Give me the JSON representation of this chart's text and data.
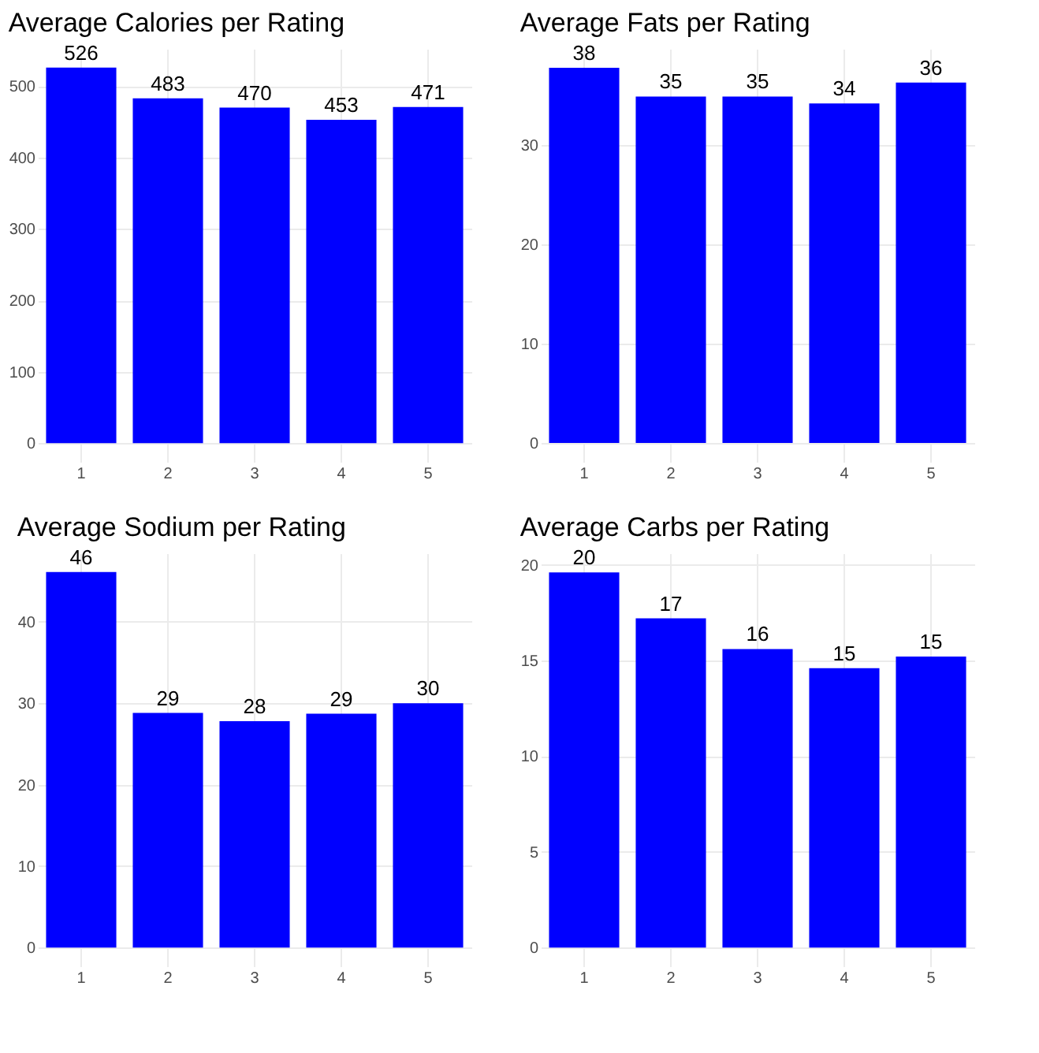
{
  "chart_data": [
    {
      "type": "bar",
      "title": "Average Calories per Rating",
      "categories": [
        "1",
        "2",
        "3",
        "4",
        "5"
      ],
      "values": [
        526,
        483,
        470,
        453,
        471
      ],
      "color": "#0000ff",
      "data_labels": true,
      "ylim": [
        -26.3,
        552.3
      ],
      "yticks": [
        0,
        100,
        200,
        300,
        400,
        500
      ],
      "grid": true
    },
    {
      "type": "bar",
      "title": "Average Fats per Rating",
      "categories": [
        "1",
        "2",
        "3",
        "4",
        "5"
      ],
      "values": [
        37.8,
        34.9,
        34.9,
        34.2,
        36.3
      ],
      "value_labels": [
        "38",
        "35",
        "35",
        "34",
        "36"
      ],
      "color": "#0000ff",
      "ylim": [
        -1.9,
        39.7
      ],
      "yticks": [
        0,
        10,
        20,
        30
      ],
      "grid": true
    },
    {
      "type": "bar",
      "title": "Average Sodium per Rating",
      "categories": [
        "1",
        "2",
        "3",
        "4",
        "5"
      ],
      "values": [
        46.1,
        28.8,
        27.8,
        28.7,
        30.0
      ],
      "value_labels": [
        "46",
        "29",
        "28",
        "29",
        "30"
      ],
      "color": "#0000ff",
      "ylim": [
        -2.3,
        48.4
      ],
      "yticks": [
        0,
        10,
        20,
        30,
        40
      ],
      "grid": true
    },
    {
      "type": "bar",
      "title": "Average Carbs per Rating",
      "categories": [
        "1",
        "2",
        "3",
        "4",
        "5"
      ],
      "values": [
        19.6,
        17.2,
        15.6,
        14.6,
        15.2
      ],
      "value_labels": [
        "20",
        "17",
        "16",
        "15",
        "15"
      ],
      "color": "#0000ff",
      "ylim": [
        -0.98,
        20.6
      ],
      "yticks": [
        0,
        5,
        10,
        15,
        20
      ],
      "grid": true
    }
  ]
}
